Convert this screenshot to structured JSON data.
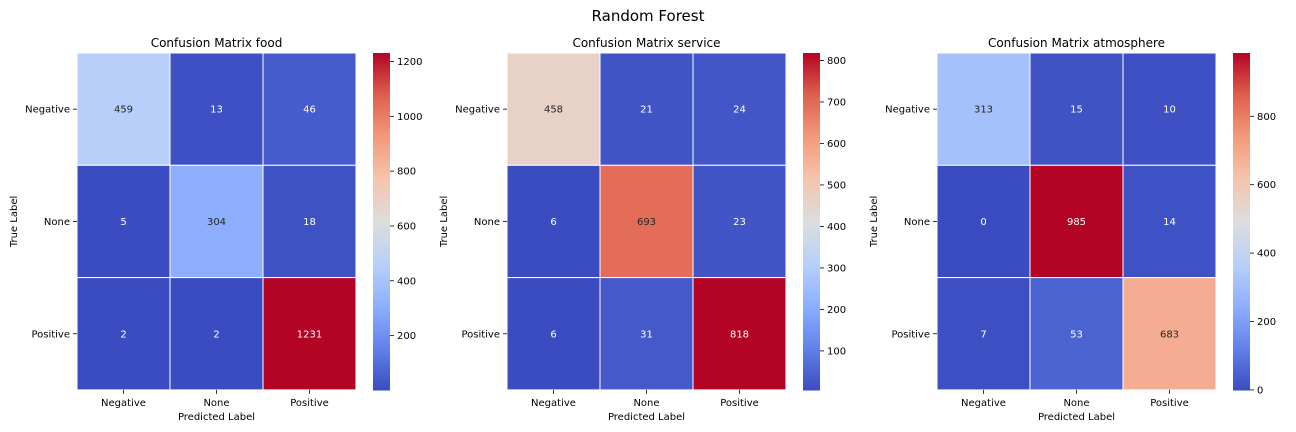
{
  "figure": {
    "title": "Random Forest"
  },
  "chart_data": [
    {
      "type": "heatmap",
      "title": "Confusion Matrix food",
      "xlabel": "Predicted Label",
      "ylabel": "True Label",
      "x_categories": [
        "Negative",
        "None",
        "Positive"
      ],
      "y_categories": [
        "Negative",
        "None",
        "Positive"
      ],
      "values": [
        [
          459,
          13,
          46
        ],
        [
          5,
          304,
          18
        ],
        [
          2,
          2,
          1231
        ]
      ],
      "colorbar": {
        "min": 2,
        "max": 1231,
        "ticks": [
          200,
          400,
          600,
          800,
          1000,
          1200
        ],
        "colormap": "coolwarm"
      }
    },
    {
      "type": "heatmap",
      "title": "Confusion Matrix service",
      "xlabel": "Predicted Label",
      "ylabel": "True Label",
      "x_categories": [
        "Negative",
        "None",
        "Positive"
      ],
      "y_categories": [
        "Negative",
        "None",
        "Positive"
      ],
      "values": [
        [
          458,
          21,
          24
        ],
        [
          6,
          693,
          23
        ],
        [
          6,
          31,
          818
        ]
      ],
      "colorbar": {
        "min": 6,
        "max": 818,
        "ticks": [
          100,
          200,
          300,
          400,
          500,
          600,
          700,
          800
        ],
        "colormap": "coolwarm"
      }
    },
    {
      "type": "heatmap",
      "title": "Confusion Matrix atmosphere",
      "xlabel": "Predicted Label",
      "ylabel": "True Label",
      "x_categories": [
        "Negative",
        "None",
        "Positive"
      ],
      "y_categories": [
        "Negative",
        "None",
        "Positive"
      ],
      "values": [
        [
          313,
          15,
          10
        ],
        [
          0,
          985,
          14
        ],
        [
          7,
          53,
          683
        ]
      ],
      "colorbar": {
        "min": 0,
        "max": 985,
        "ticks": [
          0,
          200,
          400,
          600,
          800
        ],
        "colormap": "coolwarm"
      }
    }
  ]
}
